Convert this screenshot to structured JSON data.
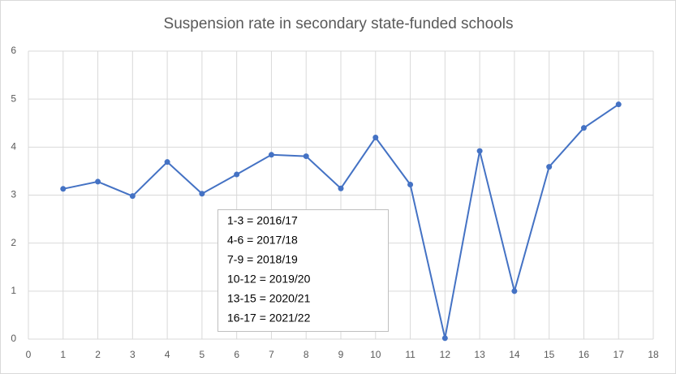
{
  "chart_data": {
    "type": "line",
    "title": "Suspension rate in secondary state-funded schools",
    "x": [
      1,
      2,
      3,
      4,
      5,
      6,
      7,
      8,
      9,
      10,
      11,
      12,
      13,
      14,
      15,
      16,
      17
    ],
    "values": [
      3.13,
      3.28,
      2.98,
      3.69,
      3.03,
      3.43,
      3.84,
      3.81,
      3.14,
      4.2,
      3.22,
      0.02,
      3.92,
      1.0,
      3.59,
      4.4,
      4.89
    ],
    "color": "#4472c4",
    "xlim": [
      0,
      18
    ],
    "xticks": [
      0,
      1,
      2,
      3,
      4,
      5,
      6,
      7,
      8,
      9,
      10,
      11,
      12,
      13,
      14,
      15,
      16,
      17,
      18
    ],
    "ylim": [
      0,
      6
    ],
    "yticks": [
      0,
      1,
      2,
      3,
      4,
      5,
      6
    ],
    "grid": true,
    "annotations": [
      "1-3 = 2016/17",
      "4-6 = 2017/18",
      "7-9 = 2018/19",
      "10-12 = 2019/20",
      "13-15 = 2020/21",
      "16-17 = 2021/22"
    ]
  }
}
